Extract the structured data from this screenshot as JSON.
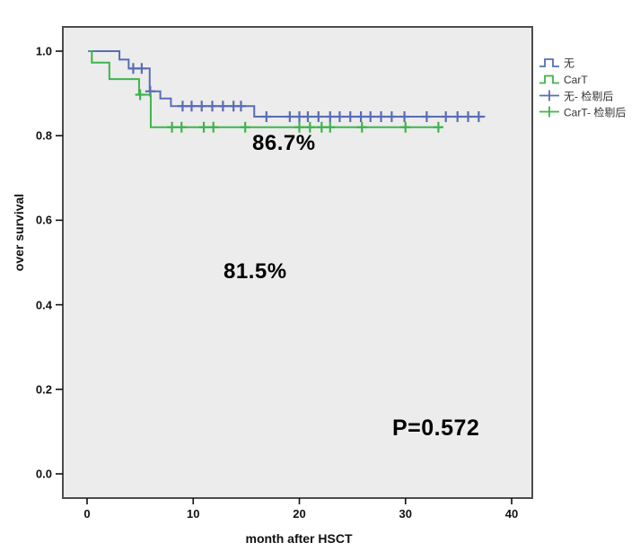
{
  "annotations": {
    "rate_top": "86.7%",
    "rate_mid": "81.5%",
    "p_value": "P=0.572"
  },
  "legend": {
    "items": [
      {
        "label": "无",
        "type": "step",
        "color": "#5a6cb5"
      },
      {
        "label": "CarT",
        "type": "step",
        "color": "#3db54b"
      },
      {
        "label": "无- 检剔后",
        "type": "censor",
        "color": "#5a6cb5"
      },
      {
        "label": "CarT- 检剔后",
        "type": "censor",
        "color": "#3db54b"
      }
    ]
  },
  "chart_data": {
    "type": "line",
    "subtype": "kaplan-meier-step",
    "title": "",
    "xlabel": "month after HSCT",
    "ylabel": "over survival",
    "xlim": [
      -2.3,
      41.9
    ],
    "ylim": [
      -0.057,
      1.057
    ],
    "grid": false,
    "legend_position": "right-top-outside",
    "plot_bg_color": "#ececec",
    "frame_color": "#4c4c4c",
    "x_ticks": [
      {
        "label": "0",
        "value": 0
      },
      {
        "label": "10",
        "value": 10
      },
      {
        "label": "20",
        "value": 20
      },
      {
        "label": "30",
        "value": 30
      },
      {
        "label": "40",
        "value": 40
      }
    ],
    "y_ticks": [
      {
        "label": "1.0",
        "value": 1.0
      },
      {
        "label": "0.8",
        "value": 0.8
      },
      {
        "label": "0.6",
        "value": 0.6
      },
      {
        "label": "0.4",
        "value": 0.4
      },
      {
        "label": "0.2",
        "value": 0.2
      },
      {
        "label": "0.0",
        "value": 0.0
      }
    ],
    "series": [
      {
        "name": "无",
        "color": "#5a6cb5",
        "start": 0.1,
        "end": 37.5,
        "steps": [
          {
            "t": 0.1,
            "s": 1.0
          },
          {
            "t": 3.05,
            "s": 0.98
          },
          {
            "t": 3.92,
            "s": 0.959
          },
          {
            "t": 5.9,
            "s": 0.905
          },
          {
            "t": 6.9,
            "s": 0.888
          },
          {
            "t": 7.9,
            "s": 0.87
          },
          {
            "t": 15.75,
            "s": 0.845
          }
        ],
        "censors": [
          {
            "t": 4.35,
            "s": 0.959
          },
          {
            "t": 5.15,
            "s": 0.959
          },
          {
            "t": 5.95,
            "s": 0.905
          },
          {
            "t": 9.0,
            "s": 0.87
          },
          {
            "t": 9.85,
            "s": 0.87
          },
          {
            "t": 10.8,
            "s": 0.87
          },
          {
            "t": 11.8,
            "s": 0.87
          },
          {
            "t": 12.8,
            "s": 0.87
          },
          {
            "t": 13.8,
            "s": 0.87
          },
          {
            "t": 14.5,
            "s": 0.87
          },
          {
            "t": 16.9,
            "s": 0.845
          },
          {
            "t": 19.1,
            "s": 0.845
          },
          {
            "t": 20.0,
            "s": 0.845
          },
          {
            "t": 20.8,
            "s": 0.845
          },
          {
            "t": 21.8,
            "s": 0.845
          },
          {
            "t": 22.9,
            "s": 0.845
          },
          {
            "t": 23.8,
            "s": 0.845
          },
          {
            "t": 24.8,
            "s": 0.845
          },
          {
            "t": 25.8,
            "s": 0.845
          },
          {
            "t": 26.7,
            "s": 0.845
          },
          {
            "t": 27.7,
            "s": 0.845
          },
          {
            "t": 28.7,
            "s": 0.845
          },
          {
            "t": 29.9,
            "s": 0.845
          },
          {
            "t": 32.0,
            "s": 0.845
          },
          {
            "t": 33.8,
            "s": 0.845
          },
          {
            "t": 34.9,
            "s": 0.845
          },
          {
            "t": 35.9,
            "s": 0.845
          },
          {
            "t": 36.9,
            "s": 0.845
          }
        ]
      },
      {
        "name": "CarT",
        "color": "#3db54b",
        "start": 0.25,
        "end": 33.4,
        "steps": [
          {
            "t": 0.25,
            "s": 1.0
          },
          {
            "t": 0.45,
            "s": 0.973
          },
          {
            "t": 2.1,
            "s": 0.934
          },
          {
            "t": 4.9,
            "s": 0.897
          },
          {
            "t": 6.0,
            "s": 0.82
          }
        ],
        "censors": [
          {
            "t": 5.0,
            "s": 0.897
          },
          {
            "t": 8.0,
            "s": 0.82
          },
          {
            "t": 8.9,
            "s": 0.82
          },
          {
            "t": 11.0,
            "s": 0.82
          },
          {
            "t": 11.9,
            "s": 0.82
          },
          {
            "t": 14.9,
            "s": 0.82
          },
          {
            "t": 20.0,
            "s": 0.82
          },
          {
            "t": 21.0,
            "s": 0.82
          },
          {
            "t": 22.1,
            "s": 0.82
          },
          {
            "t": 22.9,
            "s": 0.82
          },
          {
            "t": 25.9,
            "s": 0.82
          },
          {
            "t": 30.0,
            "s": 0.82
          },
          {
            "t": 33.1,
            "s": 0.82
          }
        ]
      }
    ]
  }
}
